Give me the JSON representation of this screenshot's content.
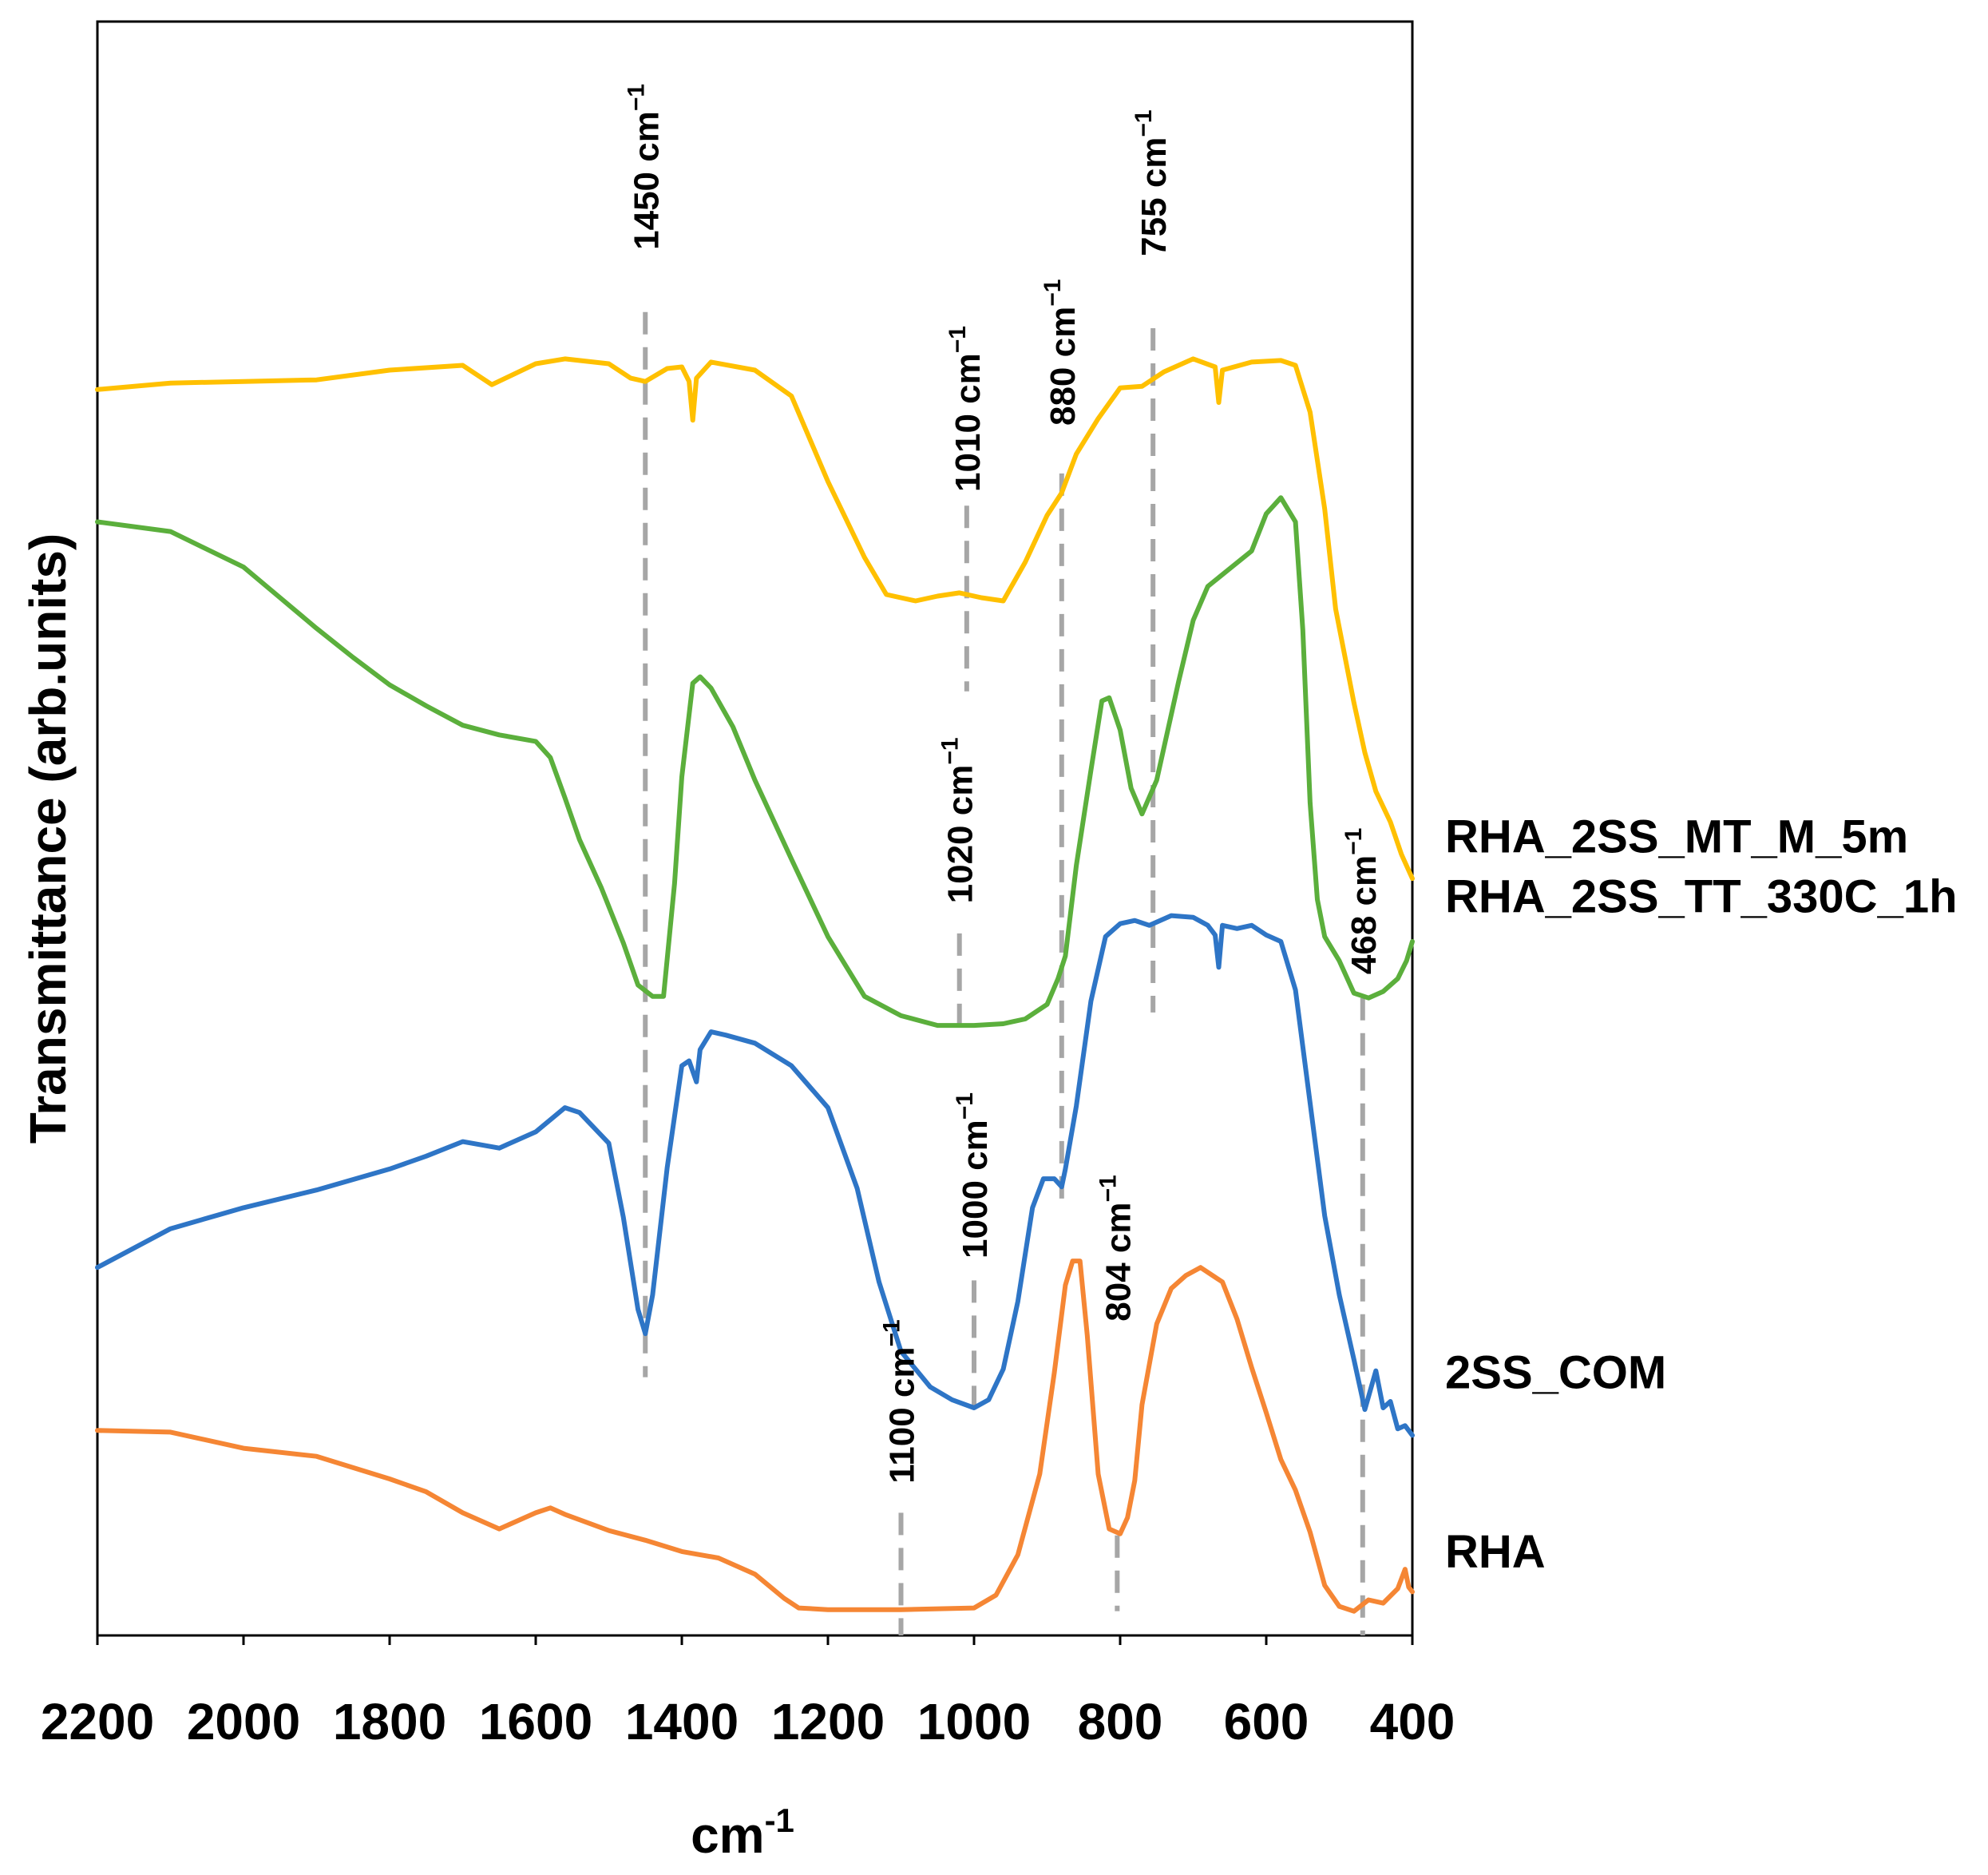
{
  "chart_data": {
    "type": "line",
    "title": "",
    "xlabel": "cm",
    "xlabel_sup": "-1",
    "ylabel": "Transmittance (arb.units)",
    "xlim": [
      2200,
      400
    ],
    "x_reversed": true,
    "ylim": [
      0,
      100
    ],
    "grid": false,
    "legend_position": "right",
    "x_ticks": [
      "2200",
      "2000",
      "1800",
      "1600",
      "1400",
      "1200",
      "1000",
      "800",
      "600",
      "400"
    ],
    "x_tick_values": [
      2200,
      2000,
      1800,
      1600,
      1400,
      1200,
      1000,
      800,
      600,
      400
    ],
    "series": [
      {
        "name": "RHA_2SS_MT_M_5m",
        "color": "#FFC000",
        "legend_y": 49.5,
        "points": [
          [
            2200,
            77.2
          ],
          [
            2100,
            77.6
          ],
          [
            2000,
            77.7
          ],
          [
            1900,
            77.8
          ],
          [
            1800,
            78.4
          ],
          [
            1700,
            78.7
          ],
          [
            1660,
            77.5
          ],
          [
            1600,
            78.8
          ],
          [
            1560,
            79.1
          ],
          [
            1500,
            78.8
          ],
          [
            1470,
            77.9
          ],
          [
            1450,
            77.7
          ],
          [
            1420,
            78.5
          ],
          [
            1400,
            78.6
          ],
          [
            1390,
            77.7
          ],
          [
            1385,
            75.3
          ],
          [
            1380,
            77.9
          ],
          [
            1360,
            78.9
          ],
          [
            1300,
            78.4
          ],
          [
            1250,
            76.8
          ],
          [
            1200,
            71.5
          ],
          [
            1150,
            66.8
          ],
          [
            1120,
            64.5
          ],
          [
            1080,
            64.1
          ],
          [
            1050,
            64.4
          ],
          [
            1020,
            64.6
          ],
          [
            990,
            64.3
          ],
          [
            960,
            64.1
          ],
          [
            930,
            66.5
          ],
          [
            900,
            69.4
          ],
          [
            880,
            70.8
          ],
          [
            860,
            73.2
          ],
          [
            830,
            75.4
          ],
          [
            800,
            77.3
          ],
          [
            770,
            77.4
          ],
          [
            740,
            78.3
          ],
          [
            700,
            79.1
          ],
          [
            670,
            78.6
          ],
          [
            665,
            76.4
          ],
          [
            660,
            78.4
          ],
          [
            620,
            78.9
          ],
          [
            580,
            79.0
          ],
          [
            560,
            78.7
          ],
          [
            540,
            75.8
          ],
          [
            520,
            69.8
          ],
          [
            505,
            63.6
          ],
          [
            480,
            57.8
          ],
          [
            465,
            54.7
          ],
          [
            450,
            52.3
          ],
          [
            430,
            50.4
          ],
          [
            415,
            48.4
          ],
          [
            400,
            46.9
          ]
        ]
      },
      {
        "name": "RHA_2SS_TT_330C_1h",
        "color": "#5BAF3C",
        "legend_y": 45.8,
        "points": [
          [
            2200,
            69.0
          ],
          [
            2100,
            68.4
          ],
          [
            2000,
            66.2
          ],
          [
            1950,
            64.3
          ],
          [
            1900,
            62.4
          ],
          [
            1850,
            60.6
          ],
          [
            1800,
            58.9
          ],
          [
            1750,
            57.6
          ],
          [
            1700,
            56.4
          ],
          [
            1650,
            55.8
          ],
          [
            1600,
            55.4
          ],
          [
            1580,
            54.4
          ],
          [
            1560,
            51.9
          ],
          [
            1540,
            49.3
          ],
          [
            1510,
            46.3
          ],
          [
            1480,
            42.9
          ],
          [
            1460,
            40.3
          ],
          [
            1440,
            39.6
          ],
          [
            1425,
            39.6
          ],
          [
            1410,
            46.6
          ],
          [
            1400,
            53.2
          ],
          [
            1385,
            59.0
          ],
          [
            1375,
            59.4
          ],
          [
            1360,
            58.7
          ],
          [
            1330,
            56.3
          ],
          [
            1300,
            53.0
          ],
          [
            1250,
            48.1
          ],
          [
            1200,
            43.3
          ],
          [
            1150,
            39.6
          ],
          [
            1100,
            38.4
          ],
          [
            1050,
            37.8
          ],
          [
            1000,
            37.8
          ],
          [
            960,
            37.9
          ],
          [
            930,
            38.2
          ],
          [
            900,
            39.1
          ],
          [
            885,
            40.7
          ],
          [
            875,
            42.1
          ],
          [
            860,
            47.7
          ],
          [
            840,
            53.6
          ],
          [
            825,
            57.9
          ],
          [
            815,
            58.1
          ],
          [
            800,
            56.1
          ],
          [
            785,
            52.5
          ],
          [
            770,
            50.9
          ],
          [
            750,
            53.0
          ],
          [
            720,
            59.1
          ],
          [
            700,
            62.9
          ],
          [
            680,
            65.0
          ],
          [
            650,
            66.1
          ],
          [
            620,
            67.2
          ],
          [
            600,
            69.5
          ],
          [
            580,
            70.5
          ],
          [
            560,
            69.0
          ],
          [
            550,
            62.3
          ],
          [
            540,
            51.6
          ],
          [
            530,
            45.6
          ],
          [
            520,
            43.3
          ],
          [
            500,
            41.8
          ],
          [
            480,
            39.8
          ],
          [
            460,
            39.5
          ],
          [
            440,
            39.9
          ],
          [
            420,
            40.7
          ],
          [
            408,
            41.8
          ],
          [
            400,
            43.0
          ]
        ]
      },
      {
        "name": "2SS_COM",
        "color": "#2E75C6",
        "legend_y": 16.3,
        "points": [
          [
            2200,
            22.8
          ],
          [
            2100,
            25.2
          ],
          [
            2000,
            26.5
          ],
          [
            1900,
            27.6
          ],
          [
            1800,
            28.9
          ],
          [
            1750,
            29.7
          ],
          [
            1700,
            30.6
          ],
          [
            1650,
            30.2
          ],
          [
            1600,
            31.2
          ],
          [
            1560,
            32.7
          ],
          [
            1540,
            32.4
          ],
          [
            1500,
            30.5
          ],
          [
            1480,
            25.9
          ],
          [
            1460,
            20.2
          ],
          [
            1450,
            18.7
          ],
          [
            1440,
            21.1
          ],
          [
            1420,
            29.0
          ],
          [
            1400,
            35.3
          ],
          [
            1390,
            35.6
          ],
          [
            1380,
            34.3
          ],
          [
            1375,
            36.3
          ],
          [
            1360,
            37.4
          ],
          [
            1340,
            37.2
          ],
          [
            1300,
            36.7
          ],
          [
            1250,
            35.3
          ],
          [
            1200,
            32.7
          ],
          [
            1160,
            27.7
          ],
          [
            1130,
            21.9
          ],
          [
            1100,
            17.6
          ],
          [
            1060,
            15.4
          ],
          [
            1030,
            14.6
          ],
          [
            1000,
            14.1
          ],
          [
            980,
            14.6
          ],
          [
            960,
            16.5
          ],
          [
            940,
            20.7
          ],
          [
            920,
            26.5
          ],
          [
            905,
            28.3
          ],
          [
            890,
            28.3
          ],
          [
            880,
            27.8
          ],
          [
            875,
            28.9
          ],
          [
            860,
            32.8
          ],
          [
            840,
            39.3
          ],
          [
            820,
            43.3
          ],
          [
            800,
            44.1
          ],
          [
            780,
            44.3
          ],
          [
            760,
            44.0
          ],
          [
            730,
            44.6
          ],
          [
            700,
            44.5
          ],
          [
            680,
            44.0
          ],
          [
            670,
            43.4
          ],
          [
            665,
            41.4
          ],
          [
            660,
            44.0
          ],
          [
            640,
            43.8
          ],
          [
            620,
            44.0
          ],
          [
            600,
            43.4
          ],
          [
            580,
            43.0
          ],
          [
            560,
            40.0
          ],
          [
            540,
            33.0
          ],
          [
            520,
            26.0
          ],
          [
            500,
            21.1
          ],
          [
            480,
            17.1
          ],
          [
            465,
            14.0
          ],
          [
            450,
            16.4
          ],
          [
            440,
            14.1
          ],
          [
            430,
            14.5
          ],
          [
            420,
            12.8
          ],
          [
            410,
            13.0
          ],
          [
            400,
            12.4
          ]
        ]
      },
      {
        "name": "RHA",
        "color": "#F58634",
        "legend_y": 5.2,
        "points": [
          [
            2200,
            12.7
          ],
          [
            2100,
            12.6
          ],
          [
            2000,
            11.6
          ],
          [
            1900,
            11.1
          ],
          [
            1800,
            9.7
          ],
          [
            1750,
            8.9
          ],
          [
            1700,
            7.6
          ],
          [
            1650,
            6.6
          ],
          [
            1600,
            7.6
          ],
          [
            1580,
            7.9
          ],
          [
            1560,
            7.5
          ],
          [
            1500,
            6.5
          ],
          [
            1450,
            5.9
          ],
          [
            1400,
            5.2
          ],
          [
            1350,
            4.8
          ],
          [
            1300,
            3.8
          ],
          [
            1260,
            2.3
          ],
          [
            1240,
            1.7
          ],
          [
            1200,
            1.6
          ],
          [
            1100,
            1.6
          ],
          [
            1000,
            1.7
          ],
          [
            970,
            2.5
          ],
          [
            940,
            5.0
          ],
          [
            910,
            10.0
          ],
          [
            890,
            16.3
          ],
          [
            875,
            21.7
          ],
          [
            865,
            23.2
          ],
          [
            855,
            23.2
          ],
          [
            845,
            18.6
          ],
          [
            830,
            10.0
          ],
          [
            815,
            6.6
          ],
          [
            800,
            6.3
          ],
          [
            790,
            7.3
          ],
          [
            780,
            9.6
          ],
          [
            770,
            14.3
          ],
          [
            750,
            19.3
          ],
          [
            730,
            21.5
          ],
          [
            710,
            22.3
          ],
          [
            690,
            22.8
          ],
          [
            660,
            21.9
          ],
          [
            640,
            19.6
          ],
          [
            620,
            16.6
          ],
          [
            600,
            13.8
          ],
          [
            580,
            10.9
          ],
          [
            560,
            9.0
          ],
          [
            540,
            6.4
          ],
          [
            520,
            3.1
          ],
          [
            500,
            1.8
          ],
          [
            480,
            1.5
          ],
          [
            460,
            2.2
          ],
          [
            440,
            2.0
          ],
          [
            420,
            2.9
          ],
          [
            410,
            4.1
          ],
          [
            405,
            3.0
          ],
          [
            400,
            2.7
          ]
        ]
      }
    ],
    "annotations": [
      {
        "label": "1450 cm",
        "x": 1450,
        "y_bottom": 16.0,
        "y_top": 82.0,
        "label_y": 91.0
      },
      {
        "label": "1010 cm",
        "x": 1010,
        "y_bottom": 58.5,
        "y_top": 70.0,
        "label_y": 76.0
      },
      {
        "label": "1020 cm",
        "x": 1020,
        "y_bottom": 37.2,
        "y_top": 43.5,
        "label_y": 50.5
      },
      {
        "label": "880 cm",
        "x": 880,
        "y_bottom": 26.5,
        "y_top": 72.0,
        "label_y": 79.5
      },
      {
        "label": "755 cm",
        "x": 755,
        "y_bottom": 38.6,
        "y_top": 81.0,
        "label_y": 90.0
      },
      {
        "label": "1000 cm",
        "x": 1000,
        "y_bottom": 14.1,
        "y_top": 22.0,
        "label_y": 28.5
      },
      {
        "label": "804 cm",
        "x": 804,
        "y_bottom": 1.5,
        "y_top": 6.2,
        "label_y": 24.0
      },
      {
        "label": "1100 cm",
        "x": 1100,
        "y_bottom": 0.0,
        "y_top": 7.6,
        "label_y": 14.5
      },
      {
        "label": "468 cm",
        "x": 468,
        "y_bottom": 0.0,
        "y_top": 39.5,
        "label_y": 45.5
      }
    ],
    "annotation_sup": "−1"
  }
}
